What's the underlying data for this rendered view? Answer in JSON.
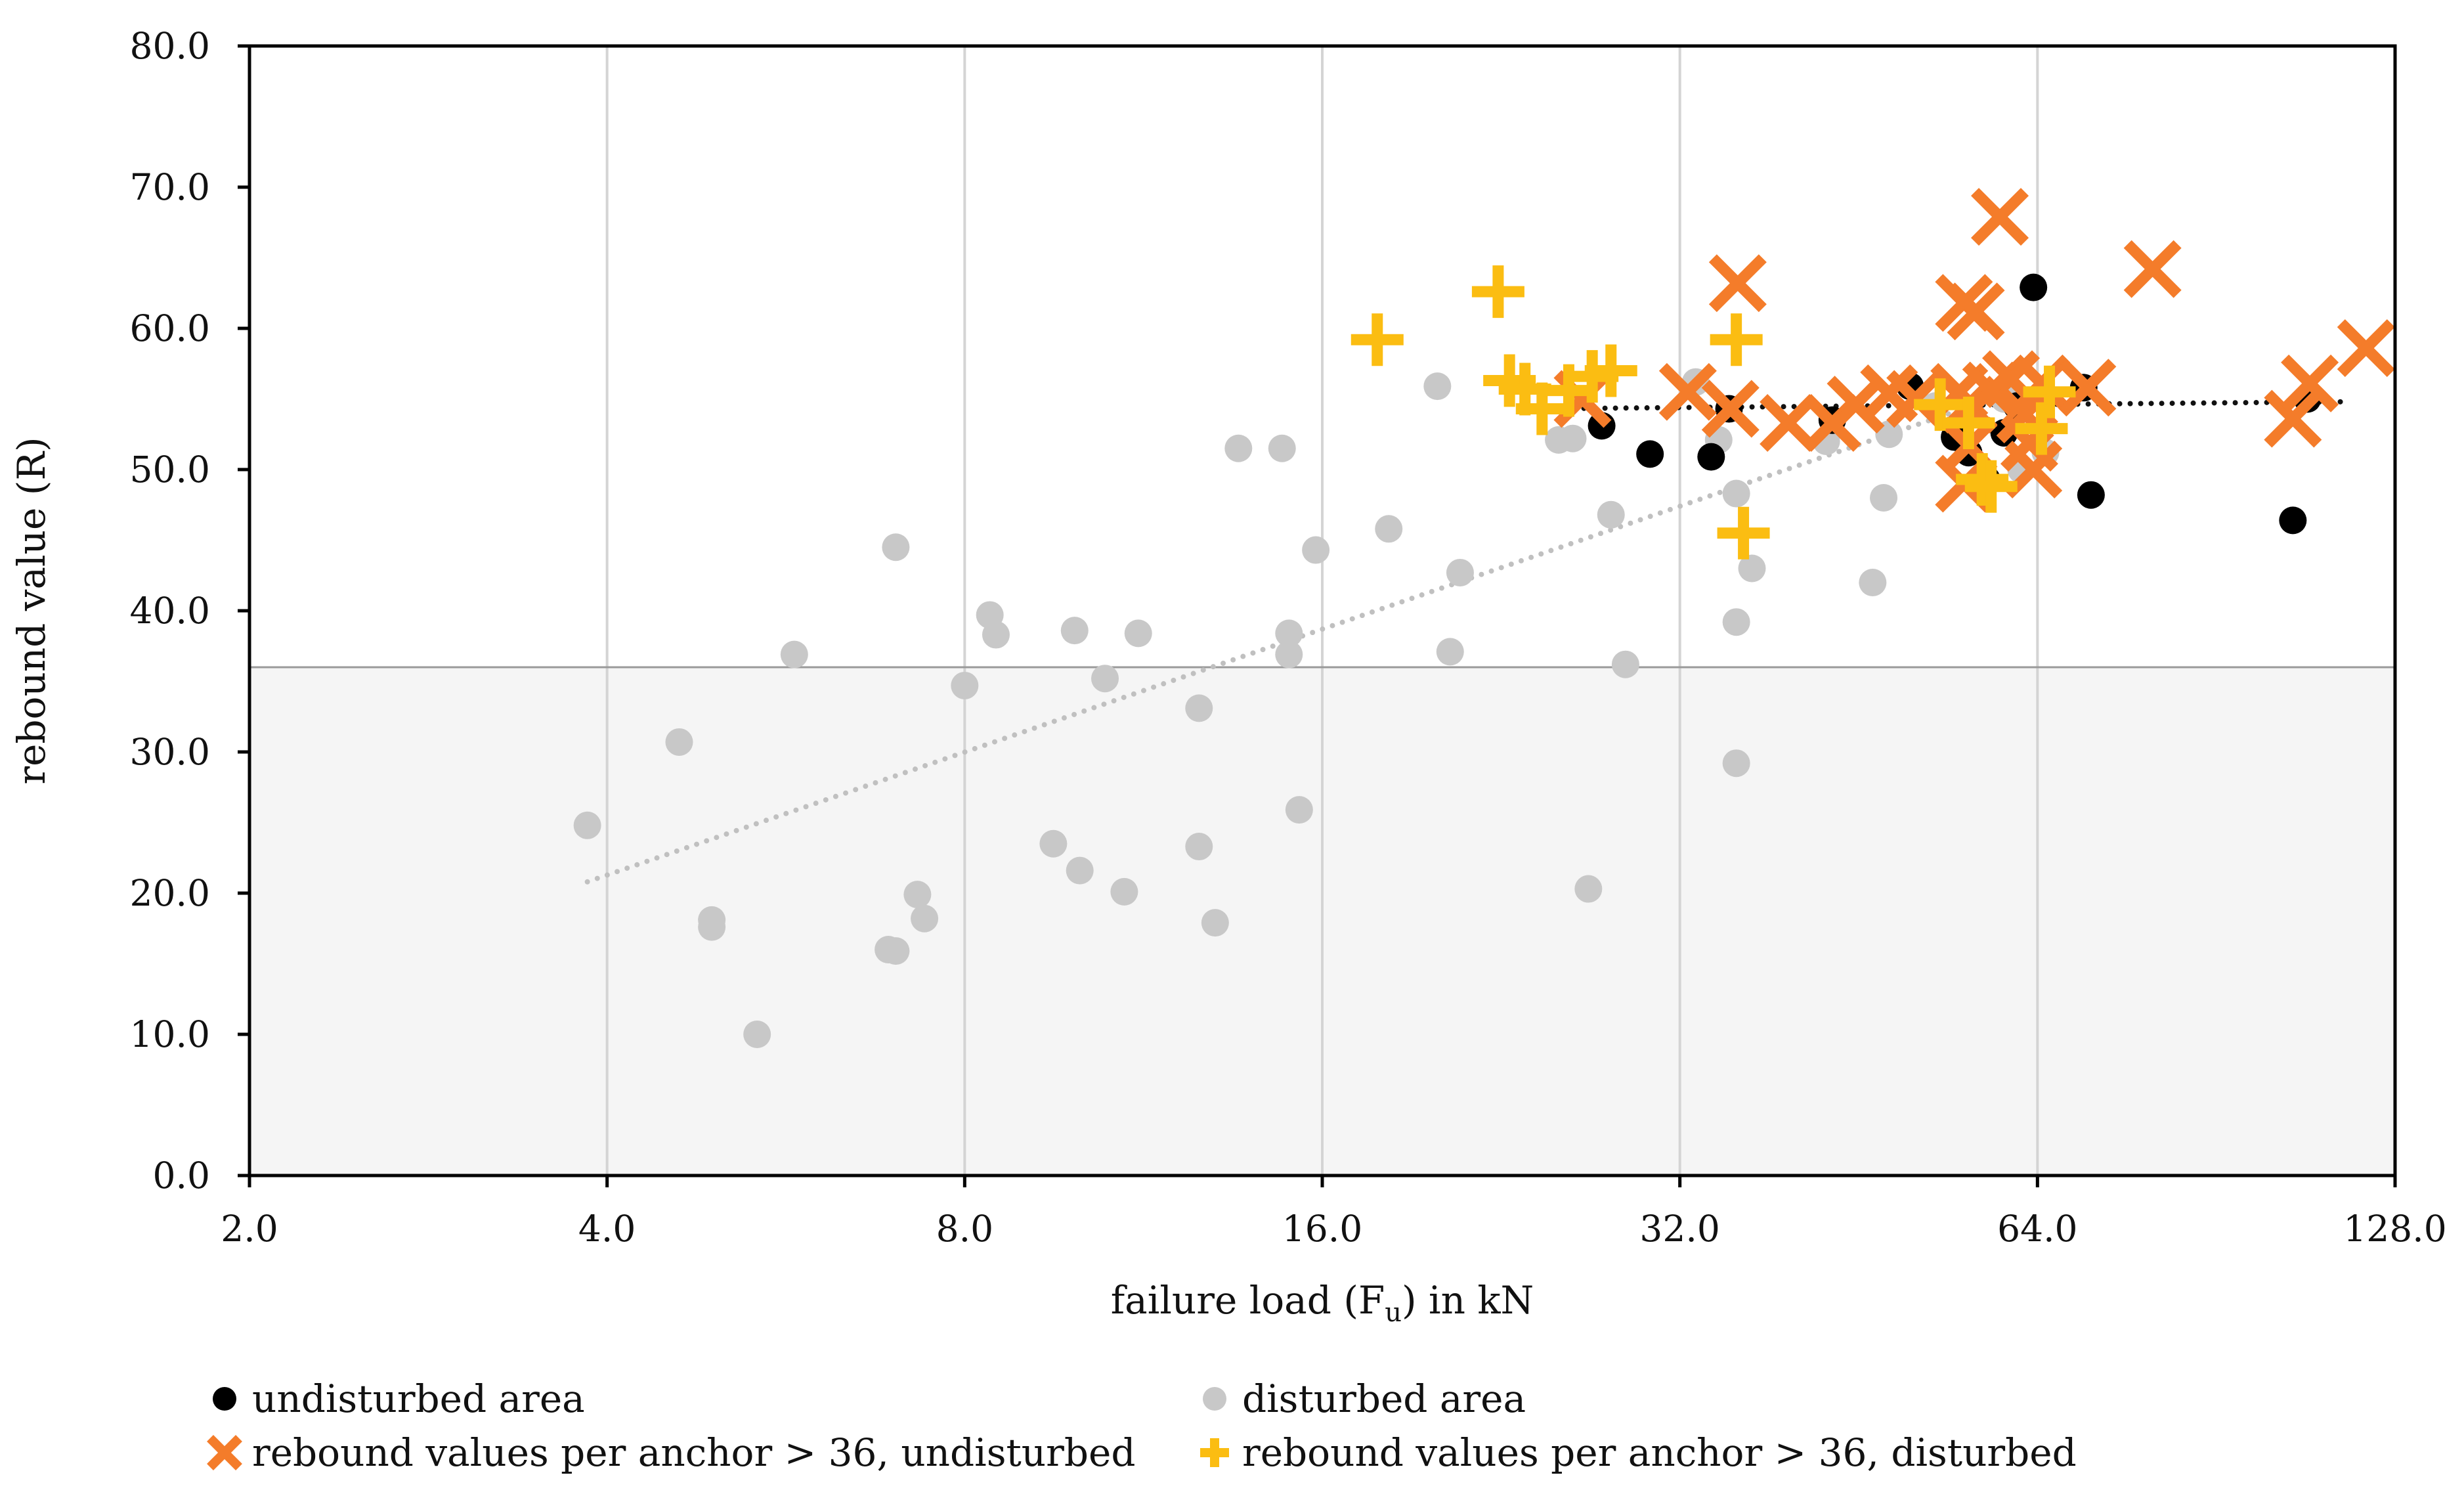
{
  "chart_data": {
    "type": "scatter",
    "x_scale": "log2",
    "xlabel_main": "failure load (F",
    "xlabel_sub": "u",
    "xlabel_tail": ") in kN",
    "ylabel": "rebound value (R)",
    "xlim": [
      2.0,
      128.0
    ],
    "ylim": [
      0,
      80
    ],
    "x_ticks": [
      2,
      4,
      8,
      16,
      32,
      64,
      128
    ],
    "x_tick_labels": [
      "2.0",
      "4.0",
      "8.0",
      "16.0",
      "32.0",
      "64.0",
      "128.0"
    ],
    "y_ticks": [
      0,
      10,
      20,
      30,
      40,
      50,
      60,
      70,
      80
    ],
    "y_tick_labels": [
      "0.0",
      "10.0",
      "20.0",
      "30.0",
      "40.0",
      "50.0",
      "60.0",
      "70.0",
      "80.0"
    ],
    "threshold": 36,
    "colors": {
      "undisturbed": "#000000",
      "disturbed": "#c8c8c8",
      "cross": "#f47c2a",
      "plus": "#fbbd12",
      "shade": "#f5f5f5",
      "grid": "#d4d4d4",
      "threshold_line": "#9a9a9a"
    },
    "trendlines": [
      {
        "name": "undisturbed trend",
        "x": [
          24,
          116
        ],
        "y": [
          54.3,
          54.8
        ],
        "color": "#111111"
      },
      {
        "name": "disturbed trend",
        "x": [
          3.85,
          60
        ],
        "y": [
          20.8,
          55.3
        ],
        "color": "#c0c0c0"
      }
    ],
    "series": [
      {
        "name": "disturbed area",
        "marker": "circle",
        "points": [
          [
            3.85,
            24.8
          ],
          [
            4.6,
            30.7
          ],
          [
            4.9,
            18.1
          ],
          [
            4.9,
            17.6
          ],
          [
            5.35,
            10.0
          ],
          [
            5.75,
            36.9
          ],
          [
            6.9,
            16.0
          ],
          [
            7.0,
            15.9
          ],
          [
            7.0,
            44.5
          ],
          [
            7.3,
            19.9
          ],
          [
            7.4,
            18.2
          ],
          [
            8.0,
            34.7
          ],
          [
            8.4,
            39.7
          ],
          [
            8.5,
            38.3
          ],
          [
            9.5,
            23.5
          ],
          [
            9.9,
            38.6
          ],
          [
            10.0,
            21.6
          ],
          [
            10.5,
            35.2
          ],
          [
            10.9,
            20.1
          ],
          [
            11.2,
            38.4
          ],
          [
            12.6,
            33.1
          ],
          [
            12.6,
            23.3
          ],
          [
            13.0,
            17.9
          ],
          [
            13.6,
            51.5
          ],
          [
            14.8,
            51.5
          ],
          [
            15.0,
            38.4
          ],
          [
            15.0,
            36.9
          ],
          [
            15.3,
            25.9
          ],
          [
            15.8,
            44.3
          ],
          [
            18.2,
            45.8
          ],
          [
            20.0,
            55.9
          ],
          [
            20.5,
            37.1
          ],
          [
            20.9,
            42.7
          ],
          [
            25.3,
            52.1
          ],
          [
            26.0,
            52.2
          ],
          [
            26.8,
            20.3
          ],
          [
            28.0,
            46.8
          ],
          [
            28.8,
            36.2
          ],
          [
            33.0,
            56.2
          ],
          [
            34.5,
            52.1
          ],
          [
            35.7,
            48.3
          ],
          [
            35.7,
            39.2
          ],
          [
            35.7,
            29.2
          ],
          [
            36.8,
            43.0
          ],
          [
            42.5,
            52.0
          ],
          [
            46.5,
            42.0
          ],
          [
            47.5,
            48.0
          ],
          [
            48.0,
            52.5
          ],
          [
            55.0,
            52.5
          ],
          [
            60.0,
            55.0
          ],
          [
            62.0,
            50.0
          ],
          [
            65.0,
            51.2
          ],
          [
            52.5,
            54.5
          ]
        ]
      },
      {
        "name": "undisturbed area",
        "marker": "circle",
        "points": [
          [
            27.5,
            53.1
          ],
          [
            30.2,
            51.1
          ],
          [
            34.0,
            50.9
          ],
          [
            35.2,
            54.3
          ],
          [
            43.0,
            53.5
          ],
          [
            50.0,
            55.9
          ],
          [
            54.5,
            52.3
          ],
          [
            56.0,
            51.2
          ],
          [
            58.0,
            49.3
          ],
          [
            60.0,
            52.6
          ],
          [
            61.5,
            54.5
          ],
          [
            63.5,
            62.9
          ],
          [
            70.0,
            55.8
          ],
          [
            71.0,
            48.2
          ],
          [
            105.0,
            46.4
          ],
          [
            108.0,
            55.0
          ]
        ]
      },
      {
        "name": "rebound values per anchor > 36, undisturbed",
        "marker": "x",
        "points": [
          [
            26.5,
            55.0
          ],
          [
            32.5,
            55.5
          ],
          [
            35.8,
            63.2
          ],
          [
            35.3,
            54.3
          ],
          [
            39.5,
            53.3
          ],
          [
            43.0,
            53.3
          ],
          [
            45.0,
            54.6
          ],
          [
            48.0,
            55.4
          ],
          [
            50.5,
            55.0
          ],
          [
            55.5,
            61.8
          ],
          [
            56.8,
            61.2
          ],
          [
            55.0,
            55.5
          ],
          [
            56.0,
            54.6
          ],
          [
            56.0,
            51.7
          ],
          [
            55.5,
            49.0
          ],
          [
            58.5,
            55.6
          ],
          [
            59.5,
            67.9
          ],
          [
            60.8,
            56.4
          ],
          [
            62.5,
            53.9
          ],
          [
            63.0,
            51.9
          ],
          [
            63.5,
            50.0
          ],
          [
            64.5,
            56.1
          ],
          [
            70.5,
            55.8
          ],
          [
            80.0,
            64.2
          ],
          [
            105.0,
            53.6
          ],
          [
            108.5,
            56.1
          ],
          [
            121.0,
            58.6
          ]
        ]
      },
      {
        "name": "rebound values per anchor > 36, disturbed",
        "marker": "plus",
        "points": [
          [
            17.8,
            59.2
          ],
          [
            22.5,
            62.6
          ],
          [
            23.0,
            56.3
          ],
          [
            23.7,
            55.7
          ],
          [
            24.5,
            54.3
          ],
          [
            25.8,
            55.6
          ],
          [
            27.0,
            56.6
          ],
          [
            28.0,
            57.0
          ],
          [
            35.7,
            59.2
          ],
          [
            36.2,
            45.5
          ],
          [
            53.0,
            54.6
          ],
          [
            56.0,
            53.3
          ],
          [
            57.5,
            49.3
          ],
          [
            58.5,
            48.8
          ],
          [
            64.5,
            52.9
          ],
          [
            65.5,
            55.5
          ]
        ]
      }
    ],
    "legend": [
      {
        "label": "undisturbed area",
        "marker": "circle",
        "color": "#000000"
      },
      {
        "label": "disturbed area",
        "marker": "circle",
        "color": "#c8c8c8"
      },
      {
        "label": "rebound values per anchor > 36, undisturbed",
        "marker": "x",
        "color": "#f47c2a"
      },
      {
        "label": "rebound values per anchor > 36, disturbed",
        "marker": "plus",
        "color": "#fbbd12"
      }
    ]
  }
}
